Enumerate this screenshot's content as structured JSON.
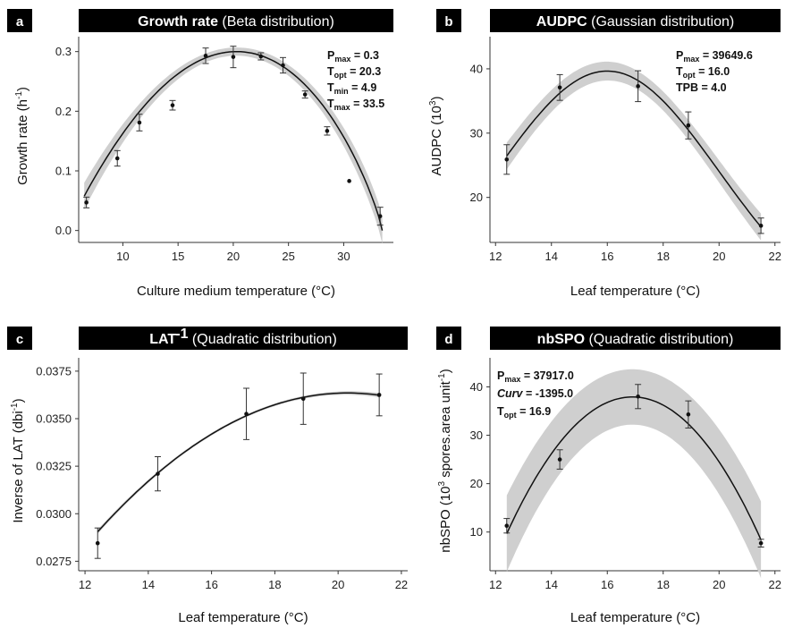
{
  "chart_data": [
    {
      "type": "line",
      "panel_letter": "a",
      "title_bold": "Growth rate",
      "title_rest": " (Beta distribution)",
      "xlabel": "Culture medium temperature (°C)",
      "ylabel": "Growth rate (h",
      "ylabel_sup": "-1",
      "ylabel_end": ")",
      "xlim": [
        6,
        34.5
      ],
      "ylim": [
        -0.02,
        0.325
      ],
      "xticks": [
        10,
        15,
        20,
        25,
        30
      ],
      "yticks": [
        0.0,
        0.1,
        0.2,
        0.3
      ],
      "ytick_labels": [
        "0.0",
        "0.1",
        "0.2",
        "0.3"
      ],
      "ci_band": true,
      "curve": {
        "model": "beta",
        "Pmax": 0.3,
        "Topt": 20.3,
        "Tmin": 4.9,
        "Tmax": 33.5,
        "x_range": [
          6.5,
          33.5
        ]
      },
      "points": [
        {
          "x": 6.7,
          "y": 0.047,
          "err": 0.009
        },
        {
          "x": 9.5,
          "y": 0.121,
          "err": 0.013
        },
        {
          "x": 11.5,
          "y": 0.181,
          "err": 0.014
        },
        {
          "x": 14.5,
          "y": 0.21,
          "err": 0.008
        },
        {
          "x": 17.5,
          "y": 0.293,
          "err": 0.013
        },
        {
          "x": 20.0,
          "y": 0.291,
          "err": 0.018
        },
        {
          "x": 22.5,
          "y": 0.292,
          "err": 0.006
        },
        {
          "x": 24.5,
          "y": 0.277,
          "err": 0.013
        },
        {
          "x": 26.5,
          "y": 0.228,
          "err": 0.006
        },
        {
          "x": 28.5,
          "y": 0.167,
          "err": 0.007
        },
        {
          "x": 30.5,
          "y": 0.083,
          "err": 0.0
        },
        {
          "x": 33.3,
          "y": 0.024,
          "err": 0.015
        }
      ],
      "annotation_lines": [
        {
          "main": "P",
          "sub": "max",
          "rest": " = 0.3"
        },
        {
          "main": "T",
          "sub": "opt",
          "rest": " = 20.3"
        },
        {
          "main": "T",
          "sub": "min",
          "rest": " = 4.9"
        },
        {
          "main": "T",
          "sub": "max",
          "rest": " = 33.5"
        }
      ]
    },
    {
      "type": "line",
      "panel_letter": "b",
      "title_bold": "AUDPC",
      "title_rest": " (Gaussian distribution)",
      "xlabel": "Leaf temperature (°C)",
      "ylabel": "AUDPC (10",
      "ylabel_sup": "3",
      "ylabel_end": ")",
      "xlim": [
        11.8,
        22.2
      ],
      "ylim": [
        13,
        45
      ],
      "xticks": [
        12,
        14,
        16,
        18,
        20,
        22
      ],
      "yticks": [
        20,
        30,
        40
      ],
      "ytick_labels": [
        "20",
        "30",
        "40"
      ],
      "ci_band": true,
      "curve": {
        "model": "gaussian",
        "Pmax": 39.6496,
        "Topt": 16.0,
        "TPB": 4.0,
        "x_range": [
          12.4,
          21.5
        ]
      },
      "points": [
        {
          "x": 12.4,
          "y": 25.9,
          "err": 2.3
        },
        {
          "x": 14.3,
          "y": 37.1,
          "err": 2.0
        },
        {
          "x": 17.1,
          "y": 37.3,
          "err": 2.4
        },
        {
          "x": 18.9,
          "y": 31.2,
          "err": 2.1
        },
        {
          "x": 21.5,
          "y": 15.6,
          "err": 1.2
        }
      ],
      "annotation_lines": [
        {
          "main": "P",
          "sub": "max",
          "rest": " = 39649.6"
        },
        {
          "main": "T",
          "sub": "opt",
          "rest": " = 16.0"
        },
        {
          "main": "TPB",
          "sub": "",
          "rest": " = 4.0"
        }
      ]
    },
    {
      "type": "line",
      "panel_letter": "c",
      "title_bold": "LAT",
      "title_sup": "-1",
      "title_rest": " (Quadratic distribution)",
      "xlabel": "Leaf temperature (°C)",
      "ylabel": "Inverse of LAT (dbi",
      "ylabel_sup": "-1",
      "ylabel_end": ")",
      "xlim": [
        11.8,
        22.2
      ],
      "ylim": [
        0.027,
        0.0382
      ],
      "xticks": [
        12,
        14,
        16,
        18,
        20,
        22
      ],
      "yticks": [
        0.0275,
        0.03,
        0.0325,
        0.035,
        0.0375
      ],
      "ytick_labels": [
        "0.0275",
        "0.0300",
        "0.0325",
        "0.0350",
        "0.0375"
      ],
      "ci_band": true,
      "curve": {
        "model": "quadratic_vertex",
        "vertex_x": 20.3,
        "vertex_y": 0.03635,
        "a": -0.000117,
        "x_range": [
          12.4,
          21.3
        ]
      },
      "points": [
        {
          "x": 12.4,
          "y": 0.02845,
          "err": 0.0008
        },
        {
          "x": 14.3,
          "y": 0.0321,
          "err": 0.0009
        },
        {
          "x": 17.1,
          "y": 0.03525,
          "err": 0.00135
        },
        {
          "x": 18.9,
          "y": 0.03605,
          "err": 0.00135
        },
        {
          "x": 21.3,
          "y": 0.03625,
          "err": 0.0011
        }
      ],
      "annotation_lines": []
    },
    {
      "type": "line",
      "panel_letter": "d",
      "title_bold": "nbSPO",
      "title_rest": " (Quadratic distribution)",
      "xlabel": "Leaf temperature (°C)",
      "ylabel": "nbSPO (10",
      "ylabel_sup": "3",
      "ylabel_end": " spores.area unit",
      "ylabel_sup2": "-1",
      "ylabel_end2": ")",
      "xlim": [
        11.8,
        22.2
      ],
      "ylim": [
        2,
        46
      ],
      "xticks": [
        12,
        14,
        16,
        18,
        20,
        22
      ],
      "yticks": [
        10,
        20,
        30,
        40
      ],
      "ytick_labels": [
        "10",
        "20",
        "30",
        "40"
      ],
      "ci_band": true,
      "curve": {
        "model": "quadratic_vertex",
        "vertex_x": 16.9,
        "vertex_y": 37.917,
        "a": -1.395,
        "x_range": [
          12.4,
          21.5
        ]
      },
      "points": [
        {
          "x": 12.4,
          "y": 11.3,
          "err": 1.5
        },
        {
          "x": 14.3,
          "y": 25.0,
          "err": 2.0
        },
        {
          "x": 17.1,
          "y": 38.0,
          "err": 2.5
        },
        {
          "x": 18.9,
          "y": 34.3,
          "err": 2.8
        },
        {
          "x": 21.5,
          "y": 7.7,
          "err": 0.8
        }
      ],
      "annotation_lines": [
        {
          "main": "P",
          "sub": "max",
          "rest": " = 37917.0"
        },
        {
          "main": "Curv",
          "sub": "",
          "rest": " = -1395.0",
          "italic": true
        },
        {
          "main": "T",
          "sub": "opt",
          "rest": " = 16.9"
        }
      ]
    }
  ]
}
